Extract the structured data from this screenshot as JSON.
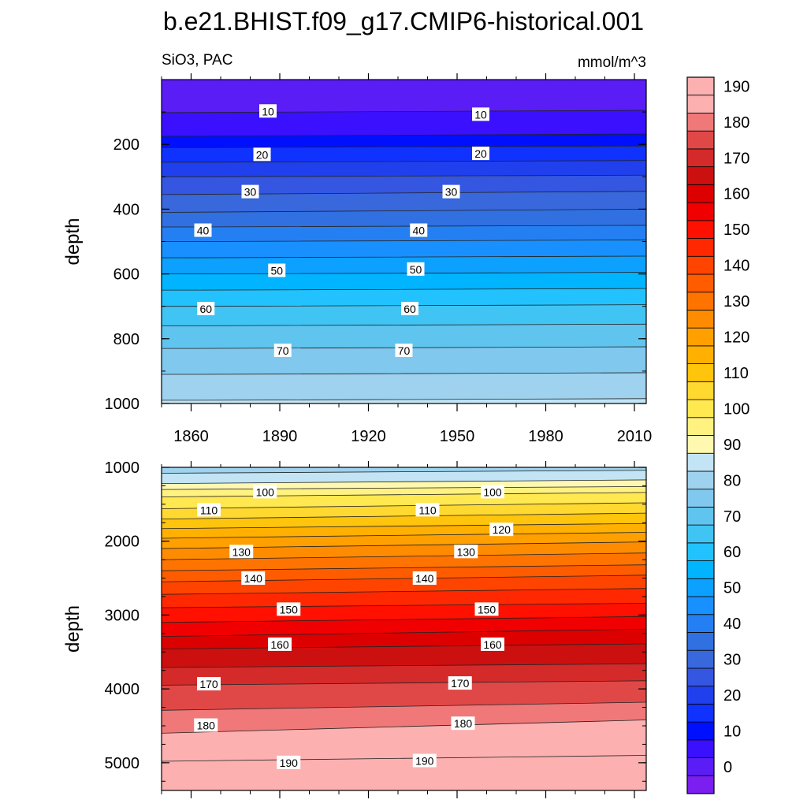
{
  "chart_data": {
    "type": "heatmap",
    "title": "b.e21.BHIST.f09_g17.CMIP6-historical.001",
    "subtitle_left": "SiO3, PAC",
    "subtitle_right": "mmol/m^3",
    "ylabel": "depth",
    "x_range": [
      1850,
      2014
    ],
    "x_ticks": [
      "1860",
      "1890",
      "1920",
      "1950",
      "1980",
      "2010"
    ],
    "panels": [
      {
        "name": "upper",
        "ylim": [
          0,
          1000
        ],
        "y_ticks": [
          "200",
          "400",
          "600",
          "800",
          "1000"
        ],
        "contour_levels": [
          5,
          10,
          15,
          20,
          25,
          30,
          35,
          40,
          45,
          50,
          55,
          60,
          65,
          70,
          75,
          80,
          85
        ],
        "contour_depths_start": [
          102,
          175,
          210,
          255,
          300,
          355,
          410,
          455,
          500,
          550,
          600,
          650,
          700,
          760,
          830,
          910,
          990
        ],
        "contour_depths_end": [
          95,
          168,
          205,
          250,
          295,
          345,
          400,
          450,
          495,
          545,
          595,
          645,
          695,
          755,
          825,
          905,
          985
        ],
        "labels": [
          {
            "x": 1886,
            "depth": 98,
            "text": "10"
          },
          {
            "x": 1958,
            "depth": 108,
            "text": "10"
          },
          {
            "x": 1884,
            "depth": 232,
            "text": "20"
          },
          {
            "x": 1958,
            "depth": 229,
            "text": "20"
          },
          {
            "x": 1880,
            "depth": 347,
            "text": "30"
          },
          {
            "x": 1948,
            "depth": 347,
            "text": "30"
          },
          {
            "x": 1864,
            "depth": 466,
            "text": "40"
          },
          {
            "x": 1937,
            "depth": 466,
            "text": "40"
          },
          {
            "x": 1889,
            "depth": 590,
            "text": "50"
          },
          {
            "x": 1936,
            "depth": 586,
            "text": "50"
          },
          {
            "x": 1865,
            "depth": 708,
            "text": "60"
          },
          {
            "x": 1934,
            "depth": 708,
            "text": "60"
          },
          {
            "x": 1891,
            "depth": 837,
            "text": "70"
          },
          {
            "x": 1932,
            "depth": 837,
            "text": "70"
          }
        ]
      },
      {
        "name": "lower",
        "ylim": [
          1000,
          5375
        ],
        "y_ticks": [
          "1000",
          "2000",
          "3000",
          "4000",
          "5000"
        ],
        "contour_levels": [
          85,
          90,
          95,
          100,
          105,
          110,
          115,
          120,
          125,
          130,
          135,
          140,
          145,
          150,
          155,
          160,
          165,
          170,
          175,
          180,
          185,
          190
        ],
        "contour_depths_start": [
          1080,
          1220,
          1300,
          1400,
          1560,
          1700,
          1830,
          1960,
          2100,
          2250,
          2400,
          2550,
          2720,
          2900,
          3100,
          3290,
          3460,
          3710,
          3950,
          4290,
          4600,
          4980
        ],
        "contour_depths_end": [
          1040,
          1170,
          1260,
          1340,
          1480,
          1620,
          1760,
          1880,
          2010,
          2160,
          2320,
          2460,
          2640,
          2840,
          3020,
          3190,
          3390,
          3660,
          3890,
          4180,
          4420,
          4900
        ],
        "labels": [
          {
            "x": 1885,
            "depth": 1335,
            "text": "100"
          },
          {
            "x": 1962,
            "depth": 1335,
            "text": "100"
          },
          {
            "x": 1866,
            "depth": 1580,
            "text": "110"
          },
          {
            "x": 1940,
            "depth": 1580,
            "text": "110"
          },
          {
            "x": 1965,
            "depth": 1845,
            "text": "120"
          },
          {
            "x": 1877,
            "depth": 2145,
            "text": "130"
          },
          {
            "x": 1953,
            "depth": 2145,
            "text": "130"
          },
          {
            "x": 1881,
            "depth": 2505,
            "text": "140"
          },
          {
            "x": 1939,
            "depth": 2505,
            "text": "140"
          },
          {
            "x": 1893,
            "depth": 2925,
            "text": "150"
          },
          {
            "x": 1960,
            "depth": 2925,
            "text": "150"
          },
          {
            "x": 1890,
            "depth": 3400,
            "text": "160"
          },
          {
            "x": 1962,
            "depth": 3400,
            "text": "160"
          },
          {
            "x": 1866,
            "depth": 3935,
            "text": "170"
          },
          {
            "x": 1951,
            "depth": 3925,
            "text": "170"
          },
          {
            "x": 1865,
            "depth": 4495,
            "text": "180"
          },
          {
            "x": 1952,
            "depth": 4470,
            "text": "180"
          },
          {
            "x": 1893,
            "depth": 5000,
            "text": "190"
          },
          {
            "x": 1939,
            "depth": 4975,
            "text": "190"
          }
        ]
      }
    ],
    "colorbar": {
      "tick_labels": [
        "0",
        "10",
        "20",
        "30",
        "40",
        "50",
        "60",
        "70",
        "80",
        "90",
        "100",
        "110",
        "120",
        "130",
        "140",
        "150",
        "160",
        "170",
        "180",
        "190"
      ],
      "levels": [
        -5,
        0,
        5,
        10,
        15,
        20,
        25,
        30,
        35,
        40,
        45,
        50,
        55,
        60,
        65,
        70,
        75,
        80,
        85,
        90,
        95,
        100,
        105,
        110,
        115,
        120,
        125,
        130,
        135,
        140,
        145,
        150,
        155,
        160,
        165,
        170,
        175,
        180,
        185,
        190,
        195,
        200
      ],
      "colors": [
        "#7a1ff0",
        "#5a1df5",
        "#3a10ff",
        "#0010ff",
        "#1032ff",
        "#2040ee",
        "#3456e0",
        "#3868dc",
        "#3070e0",
        "#2480f2",
        "#1890ff",
        "#0ca0ff",
        "#00b4ff",
        "#22c2ff",
        "#40c4f4",
        "#5fc4ee",
        "#80c8ee",
        "#9ed2ee",
        "#c2e4f4",
        "#fff8b0",
        "#fff280",
        "#ffe850",
        "#ffd830",
        "#ffc40c",
        "#ffb000",
        "#ffa000",
        "#ff8c00",
        "#ff7400",
        "#ff5c00",
        "#ff4400",
        "#ff2800",
        "#ff1000",
        "#f00000",
        "#dd0000",
        "#cc1010",
        "#d42a2a",
        "#e04848",
        "#f07878",
        "#fcb0b0",
        "#fcb0b0"
      ]
    }
  }
}
